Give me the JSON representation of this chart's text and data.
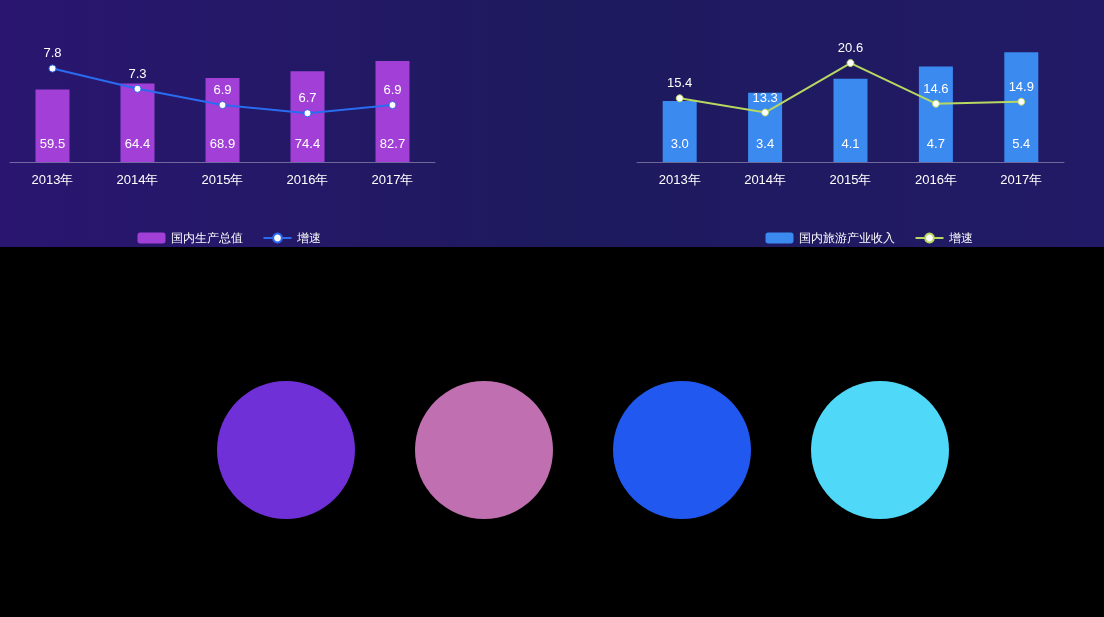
{
  "chart_data": [
    {
      "type": "bar",
      "categories": [
        "2013年",
        "2014年",
        "2015年",
        "2016年",
        "2017年"
      ],
      "data_labels": true,
      "legend": "bottom",
      "marker": "circle",
      "series": [
        {
          "name": "国内生产总值",
          "color": "#a23fd6",
          "values": [
            59.5,
            64.4,
            68.9,
            74.4,
            82.7
          ]
        },
        {
          "name": "增速",
          "type": "line",
          "axis": "y2",
          "color": "#2a6cf0",
          "values": [
            7.8,
            7.3,
            6.9,
            6.7,
            6.9
          ]
        }
      ]
    },
    {
      "type": "bar",
      "categories": [
        "2013年",
        "2014年",
        "2015年",
        "2016年",
        "2017年"
      ],
      "data_labels": true,
      "legend": "bottom",
      "marker": "circle",
      "series": [
        {
          "name": "国内旅游产业收入",
          "color": "#3a8af0",
          "values": [
            3.0,
            3.4,
            4.1,
            4.7,
            5.4
          ],
          "value_labels": [
            "3.0",
            "3.4",
            "4.1",
            "4.7",
            "5.4"
          ]
        },
        {
          "name": "增速",
          "type": "line",
          "axis": "y2",
          "color": "#b8d860",
          "values": [
            15.4,
            13.3,
            20.6,
            14.6,
            14.9
          ]
        }
      ]
    }
  ]
}
